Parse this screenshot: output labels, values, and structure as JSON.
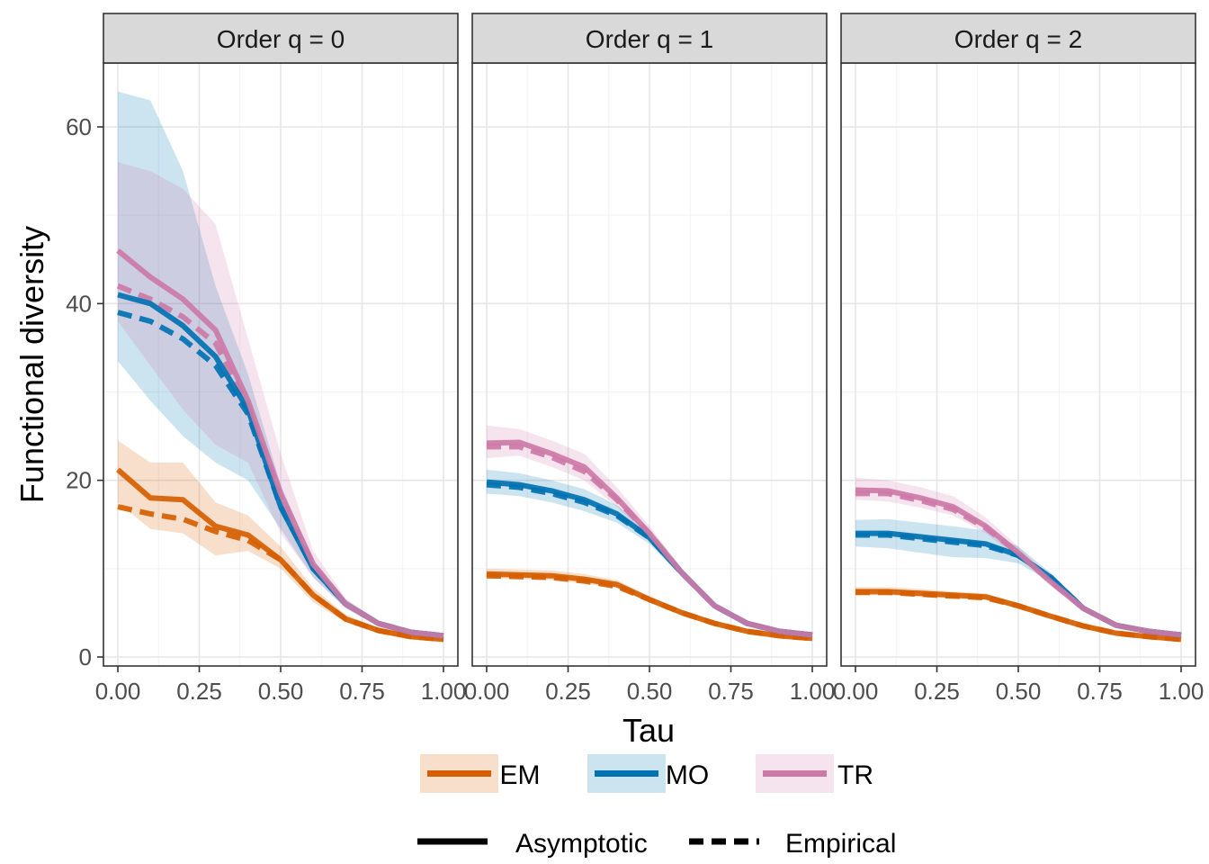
{
  "chart_data": {
    "type": "line",
    "xlabel": "Tau",
    "ylabel": "Functional diversity",
    "xlim": [
      0,
      1
    ],
    "ylim": [
      0,
      65
    ],
    "x_ticks": [
      "0.00",
      "0.25",
      "0.50",
      "0.75",
      "1.00"
    ],
    "y_ticks": [
      "0",
      "20",
      "40",
      "60"
    ],
    "grid": true,
    "legend_placement": "bottom",
    "x": [
      0.0,
      0.1,
      0.2,
      0.3,
      0.4,
      0.5,
      0.6,
      0.7,
      0.8,
      0.9,
      1.0
    ],
    "groups": [
      {
        "name": "EM",
        "color": "#D55E00"
      },
      {
        "name": "MO",
        "color": "#0072B2"
      },
      {
        "name": "TR",
        "color": "#CC79A7"
      }
    ],
    "linetypes": [
      {
        "name": "Asymptotic",
        "dash": "solid"
      },
      {
        "name": "Empirical",
        "dash": "dashed"
      }
    ],
    "panels": [
      {
        "title": "Order q = 0",
        "series": [
          {
            "group": "EM",
            "type": "Asymptotic",
            "values": [
              21.2,
              18.0,
              17.8,
              14.8,
              13.8,
              11.0,
              7.0,
              4.3,
              3.0,
              2.3,
              2.0
            ],
            "lower": [
              17.5,
              14.5,
              14.0,
              11.5,
              12.0,
              10.0,
              6.2,
              3.9,
              2.7,
              2.1,
              1.9
            ],
            "upper": [
              24.5,
              22.0,
              22.0,
              17.5,
              16.0,
              12.5,
              7.8,
              4.8,
              3.3,
              2.6,
              2.2
            ]
          },
          {
            "group": "EM",
            "type": "Empirical",
            "values": [
              17.0,
              16.2,
              15.6,
              14.2,
              13.2,
              11.0,
              7.0,
              4.3,
              3.0,
              2.3,
              2.0
            ]
          },
          {
            "group": "MO",
            "type": "Asymptotic",
            "values": [
              41.0,
              40.0,
              37.5,
              34.0,
              28.0,
              17.0,
              10.0,
              6.0,
              3.8,
              2.8,
              2.4
            ],
            "lower": [
              33.5,
              29.0,
              25.0,
              22.0,
              20.0,
              14.5,
              9.0,
              5.5,
              3.5,
              2.6,
              2.2
            ],
            "upper": [
              64.0,
              63.0,
              55.0,
              42.0,
              32.0,
              19.5,
              11.0,
              6.5,
              4.1,
              3.0,
              2.6
            ]
          },
          {
            "group": "MO",
            "type": "Empirical",
            "values": [
              39.0,
              38.0,
              36.0,
              33.0,
              27.5,
              17.0,
              10.0,
              6.0,
              3.8,
              2.8,
              2.4
            ]
          },
          {
            "group": "TR",
            "type": "Asymptotic",
            "values": [
              46.0,
              43.0,
              40.5,
              37.0,
              29.0,
              18.5,
              10.5,
              6.0,
              3.8,
              2.8,
              2.4
            ],
            "lower": [
              38.0,
              33.0,
              28.0,
              24.0,
              22.0,
              14.0,
              9.0,
              5.5,
              3.5,
              2.6,
              2.2
            ],
            "upper": [
              56.0,
              55.0,
              53.0,
              49.0,
              36.0,
              23.0,
              12.0,
              6.6,
              4.1,
              3.0,
              2.6
            ]
          },
          {
            "group": "TR",
            "type": "Empirical",
            "values": [
              42.0,
              40.5,
              38.5,
              35.5,
              28.5,
              18.0,
              10.5,
              6.0,
              3.8,
              2.8,
              2.4
            ]
          }
        ]
      },
      {
        "title": "Order q = 1",
        "series": [
          {
            "group": "EM",
            "type": "Asymptotic",
            "values": [
              9.4,
              9.3,
              9.2,
              8.8,
              8.2,
              6.5,
              5.0,
              3.8,
              2.9,
              2.4,
              2.1
            ],
            "lower": [
              8.9,
              8.8,
              8.7,
              8.3,
              7.8,
              6.2,
              4.8,
              3.6,
              2.8,
              2.3,
              2.0
            ],
            "upper": [
              10.0,
              9.9,
              9.8,
              9.4,
              8.7,
              6.9,
              5.3,
              4.0,
              3.0,
              2.5,
              2.2
            ]
          },
          {
            "group": "EM",
            "type": "Empirical",
            "values": [
              9.2,
              9.1,
              9.0,
              8.6,
              8.0,
              6.5,
              5.0,
              3.8,
              2.9,
              2.4,
              2.1
            ]
          },
          {
            "group": "MO",
            "type": "Asymptotic",
            "values": [
              19.8,
              19.5,
              18.8,
              17.8,
              16.2,
              13.5,
              9.5,
              5.8,
              3.8,
              2.9,
              2.5
            ],
            "lower": [
              18.5,
              18.2,
              17.5,
              16.5,
              15.2,
              12.8,
              9.0,
              5.5,
              3.6,
              2.7,
              2.3
            ],
            "upper": [
              21.2,
              20.8,
              20.0,
              19.0,
              17.2,
              14.2,
              10.0,
              6.1,
              4.0,
              3.1,
              2.7
            ]
          },
          {
            "group": "MO",
            "type": "Empirical",
            "values": [
              19.5,
              19.2,
              18.5,
              17.5,
              16.0,
              13.5,
              9.5,
              5.8,
              3.8,
              2.9,
              2.5
            ]
          },
          {
            "group": "TR",
            "type": "Asymptotic",
            "values": [
              24.2,
              24.3,
              23.0,
              21.5,
              18.0,
              14.0,
              9.5,
              5.8,
              3.8,
              2.9,
              2.5
            ],
            "lower": [
              22.5,
              22.8,
              21.5,
              20.0,
              17.0,
              13.4,
              9.1,
              5.5,
              3.6,
              2.7,
              2.3
            ],
            "upper": [
              26.2,
              25.8,
              24.5,
              23.0,
              19.2,
              14.8,
              10.0,
              6.1,
              4.0,
              3.1,
              2.7
            ]
          },
          {
            "group": "TR",
            "type": "Empirical",
            "values": [
              23.8,
              23.8,
              22.6,
              21.0,
              17.8,
              14.0,
              9.5,
              5.8,
              3.8,
              2.9,
              2.5
            ]
          }
        ]
      },
      {
        "title": "Order q = 2",
        "series": [
          {
            "group": "EM",
            "type": "Asymptotic",
            "values": [
              7.4,
              7.4,
              7.2,
              7.0,
              6.8,
              5.8,
              4.6,
              3.5,
              2.7,
              2.3,
              2.0
            ],
            "lower": [
              7.0,
              7.0,
              6.8,
              6.6,
              6.5,
              5.6,
              4.4,
              3.4,
              2.6,
              2.2,
              1.9
            ],
            "upper": [
              7.9,
              7.9,
              7.7,
              7.4,
              7.2,
              6.1,
              4.8,
              3.7,
              2.8,
              2.4,
              2.1
            ]
          },
          {
            "group": "EM",
            "type": "Empirical",
            "values": [
              7.3,
              7.3,
              7.1,
              6.9,
              6.7,
              5.8,
              4.6,
              3.5,
              2.7,
              2.3,
              2.0
            ]
          },
          {
            "group": "MO",
            "type": "Asymptotic",
            "values": [
              14.0,
              14.0,
              13.6,
              13.2,
              12.8,
              11.5,
              9.0,
              5.5,
              3.6,
              2.9,
              2.5
            ],
            "lower": [
              12.5,
              12.3,
              11.8,
              11.3,
              11.2,
              10.6,
              8.5,
              5.2,
              3.4,
              2.7,
              2.3
            ],
            "upper": [
              15.5,
              15.6,
              15.2,
              14.8,
              14.3,
              12.5,
              9.5,
              5.8,
              3.8,
              3.1,
              2.7
            ]
          },
          {
            "group": "MO",
            "type": "Empirical",
            "values": [
              13.8,
              13.8,
              13.4,
              13.0,
              12.6,
              11.5,
              9.0,
              5.5,
              3.6,
              2.9,
              2.5
            ]
          },
          {
            "group": "TR",
            "type": "Asymptotic",
            "values": [
              18.9,
              18.8,
              18.0,
              17.0,
              14.8,
              11.8,
              8.5,
              5.5,
              3.6,
              2.9,
              2.5
            ],
            "lower": [
              17.8,
              17.6,
              16.9,
              16.0,
              14.0,
              11.2,
              8.1,
              5.2,
              3.4,
              2.7,
              2.3
            ],
            "upper": [
              20.3,
              20.0,
              19.2,
              18.2,
              15.8,
              12.5,
              9.0,
              5.8,
              3.8,
              3.1,
              2.7
            ]
          },
          {
            "group": "TR",
            "type": "Empirical",
            "values": [
              18.5,
              18.5,
              17.7,
              16.7,
              14.6,
              11.8,
              8.5,
              5.5,
              3.6,
              2.9,
              2.5
            ]
          }
        ]
      }
    ]
  }
}
